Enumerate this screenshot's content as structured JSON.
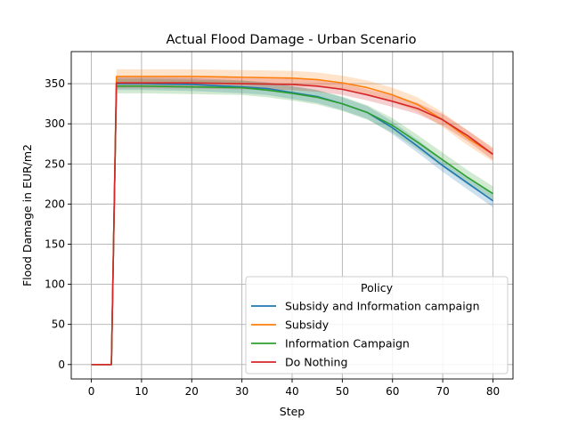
{
  "chart_data": {
    "type": "line",
    "title": "Actual Flood Damage - Urban Scenario",
    "xlabel": "Step",
    "ylabel": "Flood Damage in EUR/m2",
    "xlim": [
      -4,
      84
    ],
    "ylim": [
      -18,
      390
    ],
    "xticks": [
      0,
      10,
      20,
      30,
      40,
      50,
      60,
      70,
      80
    ],
    "yticks": [
      0,
      50,
      100,
      150,
      200,
      250,
      300,
      350
    ],
    "grid": true,
    "legend": {
      "title": "Policy",
      "placement": "lower-right"
    },
    "series": [
      {
        "name": "Subsidy and Information campaign",
        "color": "#1f77b4",
        "points": [
          [
            0,
            0
          ],
          [
            4,
            0
          ],
          [
            5,
            350
          ],
          [
            10,
            350
          ],
          [
            20,
            349
          ],
          [
            30,
            346
          ],
          [
            35,
            344
          ],
          [
            40,
            339
          ],
          [
            45,
            334
          ],
          [
            50,
            325
          ],
          [
            55,
            314
          ],
          [
            60,
            295
          ],
          [
            65,
            272
          ],
          [
            70,
            248
          ],
          [
            75,
            226
          ],
          [
            80,
            204
          ]
        ],
        "band": 8
      },
      {
        "name": "Subsidy",
        "color": "#ff7f0e",
        "points": [
          [
            0,
            0
          ],
          [
            4,
            0
          ],
          [
            5,
            359
          ],
          [
            10,
            359
          ],
          [
            20,
            359
          ],
          [
            30,
            358
          ],
          [
            40,
            357
          ],
          [
            45,
            355
          ],
          [
            50,
            351
          ],
          [
            55,
            345
          ],
          [
            60,
            336
          ],
          [
            65,
            324
          ],
          [
            70,
            305
          ],
          [
            75,
            282
          ],
          [
            80,
            262
          ]
        ],
        "band": 9
      },
      {
        "name": "Information Campaign",
        "color": "#2ca02c",
        "points": [
          [
            0,
            0
          ],
          [
            4,
            0
          ],
          [
            5,
            347
          ],
          [
            10,
            347
          ],
          [
            20,
            346
          ],
          [
            30,
            345
          ],
          [
            35,
            342
          ],
          [
            40,
            338
          ],
          [
            45,
            333
          ],
          [
            50,
            325
          ],
          [
            55,
            314
          ],
          [
            60,
            298
          ],
          [
            65,
            277
          ],
          [
            70,
            255
          ],
          [
            75,
            233
          ],
          [
            80,
            213
          ]
        ],
        "band": 9
      },
      {
        "name": "Do Nothing",
        "color": "#d62728",
        "points": [
          [
            0,
            0
          ],
          [
            4,
            0
          ],
          [
            5,
            351
          ],
          [
            10,
            351
          ],
          [
            20,
            351
          ],
          [
            30,
            350
          ],
          [
            40,
            349
          ],
          [
            45,
            347
          ],
          [
            50,
            343
          ],
          [
            55,
            336
          ],
          [
            60,
            328
          ],
          [
            65,
            319
          ],
          [
            70,
            305
          ],
          [
            75,
            285
          ],
          [
            80,
            262
          ]
        ],
        "band": 7
      }
    ]
  }
}
